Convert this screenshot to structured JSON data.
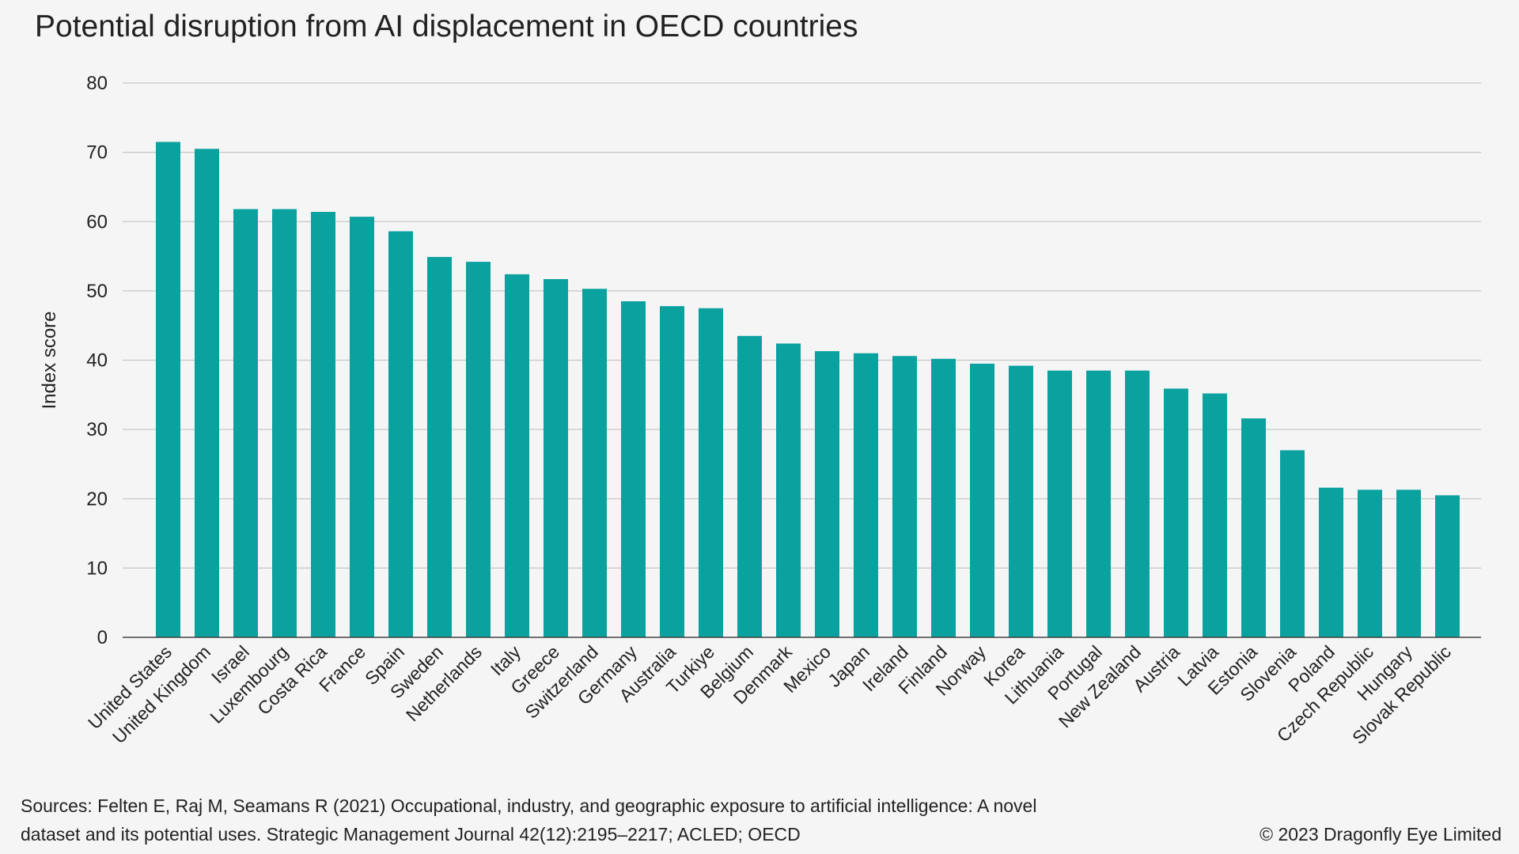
{
  "title": "Potential disruption from AI displacement in OECD countries",
  "sources": "Sources: Felten E, Raj M, Seamans R (2021) Occupational, industry, and geographic exposure to artificial intelligence: A novel dataset and its potential uses. Strategic Management Journal 42(12):2195–2217; ACLED; OECD",
  "copyright": "© 2023 Dragonfly Eye Limited",
  "colors": {
    "bar": "#0aa19f",
    "grid": "#c6c6c6",
    "axis": "#444444",
    "background": "#f5f5f5"
  },
  "chart_data": {
    "type": "bar",
    "title": "Potential disruption from AI displacement in OECD countries",
    "xlabel": "",
    "ylabel": "Index score",
    "ylim": [
      0,
      80
    ],
    "yticks": [
      0,
      10,
      20,
      30,
      40,
      50,
      60,
      70,
      80
    ],
    "grid": true,
    "categories": [
      "United States",
      "United Kingdom",
      "Israel",
      "Luxembourg",
      "Costa Rica",
      "France",
      "Spain",
      "Sweden",
      "Netherlands",
      "Italy",
      "Greece",
      "Switzerland",
      "Germany",
      "Australia",
      "Turkiye",
      "Belgium",
      "Denmark",
      "Mexico",
      "Japan",
      "Ireland",
      "Finland",
      "Norway",
      "Korea",
      "Lithuania",
      "Portugal",
      "New Zealand",
      "Austria",
      "Latvia",
      "Estonia",
      "Slovenia",
      "Poland",
      "Czech Republic",
      "Hungary",
      "Slovak Republic"
    ],
    "values": [
      71.5,
      70.5,
      61.8,
      61.8,
      61.4,
      60.7,
      58.6,
      54.9,
      54.2,
      52.4,
      51.7,
      50.3,
      48.5,
      47.8,
      47.5,
      43.5,
      42.4,
      41.3,
      41.0,
      40.6,
      40.2,
      39.5,
      39.2,
      38.5,
      38.5,
      38.5,
      35.9,
      35.2,
      31.6,
      27.0,
      21.6,
      21.3,
      21.3,
      20.5
    ]
  }
}
